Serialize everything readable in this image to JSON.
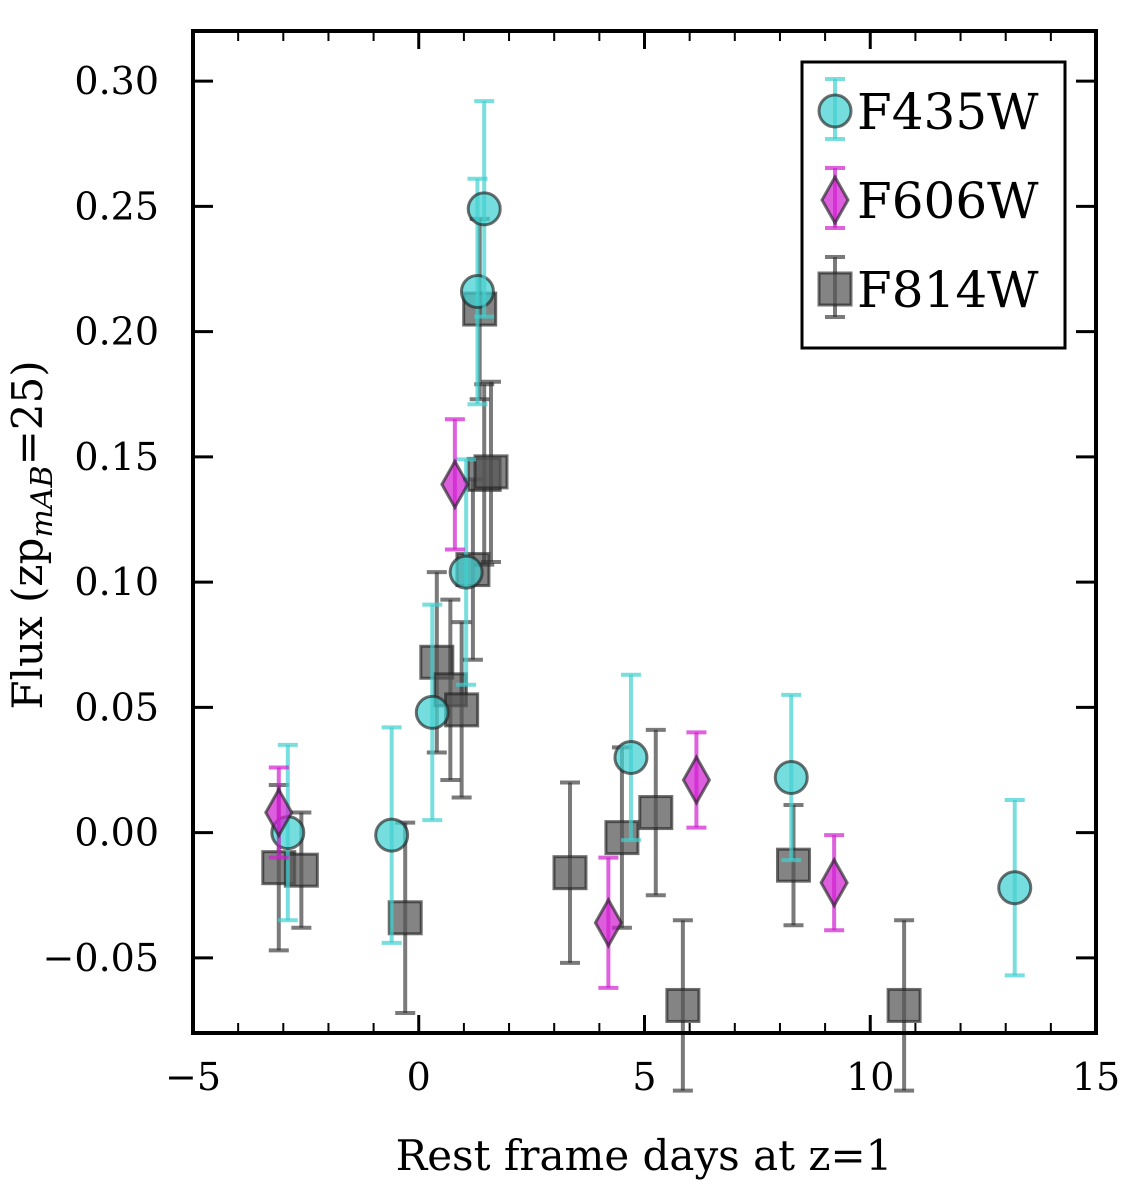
{
  "chart_data": {
    "type": "scatter",
    "xlabel": "Rest frame days at z=1",
    "ylabel_main": "Flux (zp",
    "ylabel_sub": "mAB",
    "ylabel_end": "=25)",
    "xlim": [
      -5,
      15
    ],
    "ylim": [
      -0.08,
      0.32
    ],
    "x_ticks": [
      -5,
      0,
      5,
      10,
      15
    ],
    "x_tick_labels": [
      "−5",
      "0",
      "5",
      "10",
      "15"
    ],
    "y_ticks": [
      -0.05,
      0.0,
      0.05,
      0.1,
      0.15,
      0.2,
      0.25,
      0.3
    ],
    "y_tick_labels": [
      "−0.05",
      "0.00",
      "0.05",
      "0.10",
      "0.15",
      "0.20",
      "0.25",
      "0.30"
    ],
    "grid": false,
    "legend_position": "top-right",
    "series": [
      {
        "name": "F435W",
        "marker": "circle",
        "color": "#40d0d0",
        "points": [
          {
            "x": -2.9,
            "y": 0.0,
            "err": 0.035
          },
          {
            "x": -0.6,
            "y": -0.001,
            "err": 0.043
          },
          {
            "x": 0.3,
            "y": 0.048,
            "err": 0.043
          },
          {
            "x": 1.05,
            "y": 0.104,
            "err": 0.045
          },
          {
            "x": 1.3,
            "y": 0.216,
            "err": 0.045
          },
          {
            "x": 1.45,
            "y": 0.249,
            "err": 0.043
          },
          {
            "x": 4.7,
            "y": 0.03,
            "err": 0.033
          },
          {
            "x": 8.25,
            "y": 0.022,
            "err": 0.033
          },
          {
            "x": 13.2,
            "y": -0.022,
            "err": 0.035
          }
        ]
      },
      {
        "name": "F606W",
        "marker": "diamond",
        "color": "#d020d0",
        "points": [
          {
            "x": -3.1,
            "y": 0.008,
            "err": 0.018
          },
          {
            "x": 0.8,
            "y": 0.139,
            "err": 0.026
          },
          {
            "x": 4.2,
            "y": -0.036,
            "err": 0.026
          },
          {
            "x": 6.15,
            "y": 0.021,
            "err": 0.019
          },
          {
            "x": 9.2,
            "y": -0.02,
            "err": 0.019
          }
        ]
      },
      {
        "name": "F814W",
        "marker": "square",
        "color": "#555555",
        "points": [
          {
            "x": -3.1,
            "y": -0.014,
            "err": 0.033
          },
          {
            "x": -2.6,
            "y": -0.015,
            "err": 0.023
          },
          {
            "x": -0.3,
            "y": -0.034,
            "err": 0.038
          },
          {
            "x": 0.4,
            "y": 0.068,
            "err": 0.036
          },
          {
            "x": 0.7,
            "y": 0.057,
            "err": 0.036
          },
          {
            "x": 0.95,
            "y": 0.049,
            "err": 0.035
          },
          {
            "x": 1.2,
            "y": 0.105,
            "err": 0.036
          },
          {
            "x": 1.35,
            "y": 0.209,
            "err": 0.036
          },
          {
            "x": 1.45,
            "y": 0.143,
            "err": 0.036
          },
          {
            "x": 1.6,
            "y": 0.144,
            "err": 0.036
          },
          {
            "x": 3.35,
            "y": -0.016,
            "err": 0.036
          },
          {
            "x": 4.5,
            "y": -0.002,
            "err": 0.036
          },
          {
            "x": 5.25,
            "y": 0.008,
            "err": 0.033
          },
          {
            "x": 5.85,
            "y": -0.069,
            "err": 0.034
          },
          {
            "x": 8.3,
            "y": -0.013,
            "err": 0.024
          },
          {
            "x": 10.75,
            "y": -0.069,
            "err": 0.034
          }
        ]
      }
    ]
  }
}
